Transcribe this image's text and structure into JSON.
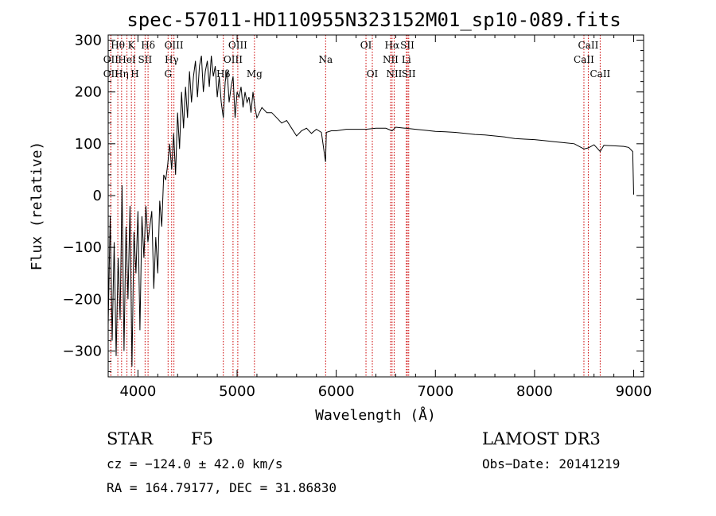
{
  "chart_data": {
    "type": "line",
    "title": "spec-57011-HD110955N323152M01_sp10-089.fits",
    "xlabel": "Wavelength (Å)",
    "ylabel": "Flux (relative)",
    "xlim": [
      3700,
      9100
    ],
    "ylim": [
      -350,
      310
    ],
    "x_ticks": [
      4000,
      5000,
      6000,
      7000,
      8000,
      9000
    ],
    "x_tick_labels": [
      "4000",
      "5000",
      "6000",
      "7000",
      "8000",
      "9000"
    ],
    "y_ticks": [
      -300,
      -200,
      -100,
      0,
      100,
      200,
      300
    ],
    "y_tick_labels": [
      "−300",
      "−200",
      "−100",
      "0",
      "100",
      "200",
      "300"
    ],
    "series": [
      {
        "name": "spectrum",
        "x": [
          3700,
          3720,
          3740,
          3760,
          3780,
          3800,
          3820,
          3840,
          3860,
          3880,
          3900,
          3920,
          3940,
          3960,
          3980,
          4000,
          4020,
          4040,
          4060,
          4080,
          4100,
          4120,
          4140,
          4160,
          4180,
          4200,
          4220,
          4240,
          4260,
          4280,
          4300,
          4320,
          4340,
          4360,
          4380,
          4400,
          4420,
          4440,
          4460,
          4480,
          4500,
          4520,
          4540,
          4560,
          4580,
          4600,
          4620,
          4640,
          4660,
          4680,
          4700,
          4720,
          4740,
          4760,
          4780,
          4800,
          4820,
          4840,
          4861,
          4880,
          4900,
          4920,
          4940,
          4960,
          4980,
          5000,
          5020,
          5040,
          5060,
          5080,
          5100,
          5120,
          5140,
          5160,
          5180,
          5200,
          5250,
          5300,
          5350,
          5400,
          5450,
          5500,
          5550,
          5600,
          5650,
          5700,
          5750,
          5800,
          5850,
          5892,
          5900,
          5950,
          6000,
          6100,
          6200,
          6300,
          6400,
          6500,
          6563,
          6600,
          6700,
          6800,
          6900,
          7000,
          7100,
          7200,
          7300,
          7400,
          7500,
          7600,
          7700,
          7800,
          7900,
          8000,
          8100,
          8200,
          8300,
          8400,
          8498,
          8542,
          8600,
          8662,
          8700,
          8800,
          8900,
          8950,
          8990,
          9000
        ],
        "y": [
          -250,
          -40,
          -280,
          -90,
          -310,
          -120,
          -240,
          20,
          -300,
          -60,
          -200,
          -20,
          -330,
          -70,
          -150,
          -30,
          -260,
          -40,
          -120,
          -20,
          -90,
          -60,
          -30,
          -180,
          -80,
          -150,
          -10,
          -60,
          40,
          30,
          60,
          100,
          50,
          120,
          40,
          160,
          90,
          200,
          130,
          210,
          150,
          240,
          180,
          230,
          260,
          190,
          250,
          270,
          200,
          240,
          260,
          210,
          270,
          230,
          250,
          190,
          230,
          180,
          150,
          220,
          240,
          180,
          210,
          230,
          150,
          200,
          190,
          210,
          170,
          200,
          180,
          190,
          160,
          200,
          170,
          150,
          170,
          160,
          160,
          150,
          140,
          145,
          130,
          115,
          125,
          130,
          120,
          128,
          122,
          65,
          122,
          125,
          125,
          128,
          128,
          128,
          130,
          130,
          125,
          132,
          130,
          128,
          126,
          124,
          123,
          122,
          120,
          118,
          117,
          115,
          113,
          110,
          109,
          108,
          106,
          104,
          102,
          100,
          90,
          92,
          98,
          85,
          97,
          96,
          95,
          93,
          85,
          2
        ]
      }
    ],
    "spectral_lines": [
      {
        "name": "Hθ",
        "wl": 3797,
        "row": 1
      },
      {
        "name": "OII",
        "wl": 3727,
        "row": 2
      },
      {
        "name": "OII",
        "wl": 3727,
        "row": 3
      },
      {
        "name": "Hη",
        "wl": 3835,
        "row": 3
      },
      {
        "name": "K",
        "wl": 3934,
        "row": 1
      },
      {
        "name": "HeI",
        "wl": 3889,
        "row": 2
      },
      {
        "name": "H",
        "wl": 3969,
        "row": 3
      },
      {
        "name": "SII",
        "wl": 4072,
        "row": 2
      },
      {
        "name": "Hδ",
        "wl": 4102,
        "row": 1
      },
      {
        "name": "OIII",
        "wl": 4363,
        "row": 1
      },
      {
        "name": "Hγ",
        "wl": 4340,
        "row": 2
      },
      {
        "name": "G",
        "wl": 4304,
        "row": 3
      },
      {
        "name": "OIII",
        "wl": 5007,
        "row": 1
      },
      {
        "name": "OIII",
        "wl": 4959,
        "row": 2
      },
      {
        "name": "Hβ",
        "wl": 4861,
        "row": 3
      },
      {
        "name": "Mg",
        "wl": 5175,
        "row": 3
      },
      {
        "name": "Na",
        "wl": 5893,
        "row": 2
      },
      {
        "name": "OI",
        "wl": 6300,
        "row": 1
      },
      {
        "name": "OI",
        "wl": 6364,
        "row": 3
      },
      {
        "name": "Hα",
        "wl": 6563,
        "row": 1
      },
      {
        "name": "NII",
        "wl": 6548,
        "row": 2
      },
      {
        "name": "NII",
        "wl": 6584,
        "row": 3
      },
      {
        "name": "SII",
        "wl": 6717,
        "row": 1
      },
      {
        "name": "Li",
        "wl": 6707,
        "row": 2
      },
      {
        "name": "SII",
        "wl": 6731,
        "row": 3
      },
      {
        "name": "CaII",
        "wl": 8542,
        "row": 1
      },
      {
        "name": "CaII",
        "wl": 8498,
        "row": 2
      },
      {
        "name": "CaII",
        "wl": 8662,
        "row": 3
      }
    ],
    "line_color": "#000000",
    "marker_color": "#cc0000"
  },
  "info": {
    "object_class": "STAR",
    "subclass": "F5",
    "survey": "LAMOST DR3",
    "cz": "cz = −124.0 ± 42.0 km/s",
    "obs_date": "Obs−Date: 20141219",
    "coords": "RA = 164.79177, DEC =  31.86830"
  }
}
